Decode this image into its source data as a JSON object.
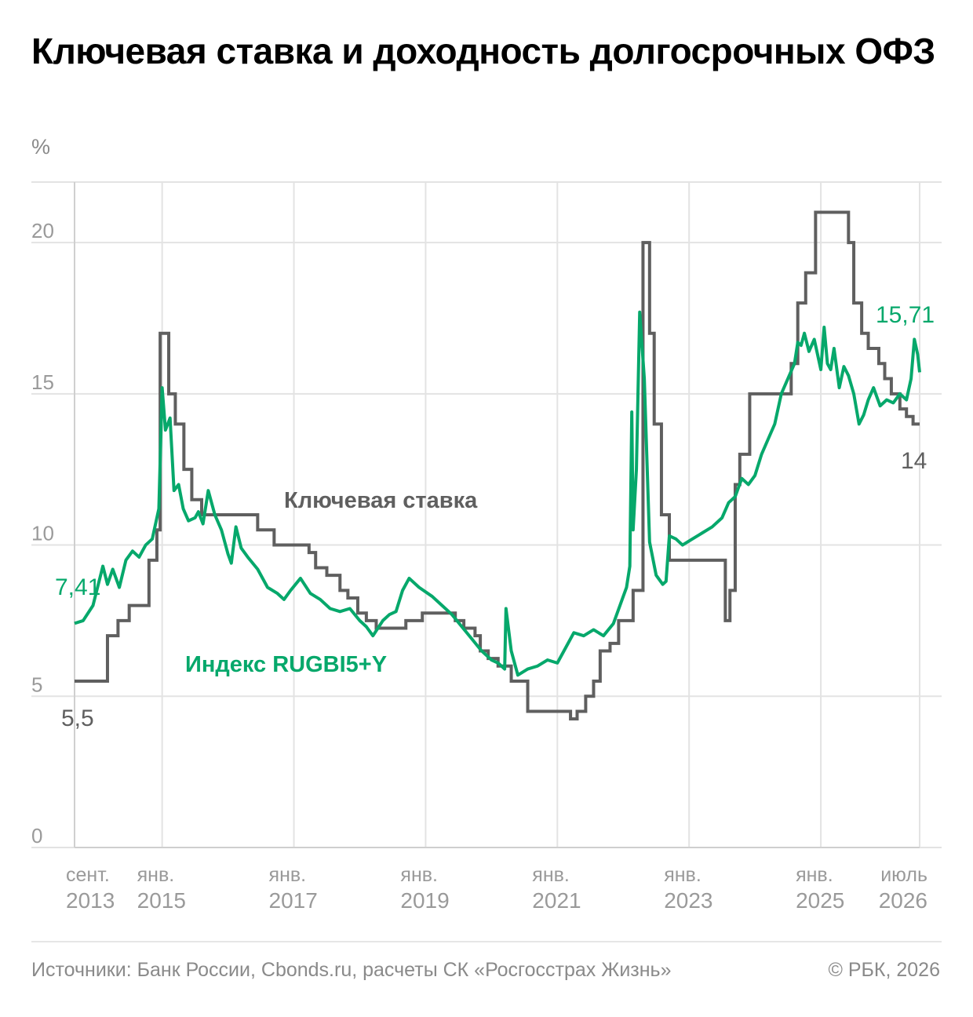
{
  "title": "Ключевая ставка и доходность долгосрочных ОФЗ",
  "unit": "%",
  "source": "Источники: Банк России, Cbonds.ru, расчеты СК «Росгосстрах Жизнь»",
  "copyright": "© РБК, 2026",
  "colors": {
    "key_rate": "#5f5f5f",
    "rugbi": "#06a86b",
    "grid": "#e3e3e3",
    "tick_text": "#9a9a9a"
  },
  "chart_data": {
    "type": "line",
    "title": "Ключевая ставка и доходность долгосрочных ОФЗ",
    "ylabel": "%",
    "ylim": [
      0,
      22
    ],
    "xlim": [
      2013.67,
      2026.5
    ],
    "grid": true,
    "y_ticks": [
      0,
      5,
      10,
      15,
      20
    ],
    "x_ticks": [
      {
        "x": 2013.67,
        "line1": "сент.",
        "line2": "2013"
      },
      {
        "x": 2015.0,
        "line1": "янв.",
        "line2": "2015"
      },
      {
        "x": 2017.0,
        "line1": "янв.",
        "line2": "2017"
      },
      {
        "x": 2019.0,
        "line1": "янв.",
        "line2": "2019"
      },
      {
        "x": 2021.0,
        "line1": "янв.",
        "line2": "2021"
      },
      {
        "x": 2023.0,
        "line1": "янв.",
        "line2": "2023"
      },
      {
        "x": 2025.0,
        "line1": "янв.",
        "line2": "2025"
      },
      {
        "x": 2026.5,
        "line1": "июль",
        "line2": "2026"
      }
    ],
    "series": [
      {
        "name": "Ключевая ставка",
        "kind": "step",
        "start_label": "5,5",
        "end_label": "14",
        "x": [
          2013.67,
          2014.17,
          2014.33,
          2014.5,
          2014.8,
          2014.92,
          2014.97,
          2015.1,
          2015.2,
          2015.33,
          2015.45,
          2015.6,
          2016.45,
          2016.7,
          2017.23,
          2017.33,
          2017.5,
          2017.7,
          2017.82,
          2017.97,
          2018.1,
          2018.25,
          2018.7,
          2018.95,
          2019.45,
          2019.58,
          2019.75,
          2019.83,
          2019.95,
          2020.1,
          2020.3,
          2020.55,
          2021.2,
          2021.3,
          2021.43,
          2021.55,
          2021.65,
          2021.8,
          2021.93,
          2022.15,
          2022.3,
          2022.4,
          2022.47,
          2022.58,
          2022.7,
          2023.55,
          2023.62,
          2023.7,
          2023.77,
          2023.92,
          2024.55,
          2024.65,
          2024.77,
          2024.92,
          2025.42,
          2025.5,
          2025.62,
          2025.72,
          2025.88,
          2025.97,
          2026.07,
          2026.2,
          2026.3,
          2026.4,
          2026.5
        ],
        "y": [
          5.5,
          7.0,
          7.5,
          8.0,
          9.5,
          10.5,
          17.0,
          15.0,
          14.0,
          12.5,
          11.5,
          11.0,
          10.5,
          10.0,
          9.75,
          9.25,
          9.0,
          8.5,
          8.25,
          7.75,
          7.5,
          7.25,
          7.5,
          7.75,
          7.5,
          7.25,
          7.0,
          6.5,
          6.25,
          6.0,
          5.5,
          4.5,
          4.25,
          4.5,
          5.0,
          5.5,
          6.5,
          6.75,
          7.5,
          8.5,
          20.0,
          17.0,
          14.0,
          11.0,
          9.5,
          7.5,
          8.5,
          12.0,
          13.0,
          15.0,
          16.0,
          18.0,
          19.0,
          21.0,
          20.0,
          18.0,
          17.0,
          16.5,
          16.0,
          15.5,
          15.0,
          14.5,
          14.25,
          14.0,
          14.0
        ]
      },
      {
        "name": "Индекс RUGBI5+Y",
        "kind": "line",
        "start_label": "7,41",
        "end_label": "15,71",
        "x": [
          2013.67,
          2013.8,
          2013.95,
          2014.1,
          2014.17,
          2014.25,
          2014.35,
          2014.45,
          2014.55,
          2014.65,
          2014.75,
          2014.85,
          2014.95,
          2015.0,
          2015.05,
          2015.12,
          2015.18,
          2015.25,
          2015.32,
          2015.4,
          2015.5,
          2015.55,
          2015.62,
          2015.7,
          2015.8,
          2015.9,
          2016.0,
          2016.05,
          2016.12,
          2016.2,
          2016.3,
          2016.45,
          2016.6,
          2016.75,
          2016.85,
          2016.95,
          2017.1,
          2017.25,
          2017.4,
          2017.55,
          2017.7,
          2017.85,
          2018.0,
          2018.1,
          2018.2,
          2018.35,
          2018.45,
          2018.55,
          2018.65,
          2018.75,
          2018.9,
          2019.1,
          2019.25,
          2019.4,
          2019.55,
          2019.7,
          2019.85,
          2020.0,
          2020.1,
          2020.2,
          2020.22,
          2020.3,
          2020.4,
          2020.55,
          2020.7,
          2020.85,
          2021.0,
          2021.15,
          2021.25,
          2021.4,
          2021.55,
          2021.7,
          2021.85,
          2021.95,
          2022.05,
          2022.1,
          2022.13,
          2022.15,
          2022.2,
          2022.25,
          2022.32,
          2022.4,
          2022.5,
          2022.6,
          2022.65,
          2022.7,
          2022.8,
          2022.9,
          2023.05,
          2023.2,
          2023.35,
          2023.5,
          2023.6,
          2023.7,
          2023.8,
          2023.9,
          2024.0,
          2024.1,
          2024.2,
          2024.3,
          2024.4,
          2024.5,
          2024.6,
          2024.65,
          2024.7,
          2024.75,
          2024.82,
          2024.9,
          2025.0,
          2025.05,
          2025.1,
          2025.15,
          2025.2,
          2025.28,
          2025.35,
          2025.42,
          2025.5,
          2025.58,
          2025.65,
          2025.72,
          2025.8,
          2025.9,
          2026.0,
          2026.1,
          2026.2,
          2026.3,
          2026.37,
          2026.42,
          2026.47,
          2026.5
        ],
        "y": [
          7.41,
          7.5,
          8.0,
          9.3,
          8.7,
          9.2,
          8.6,
          9.5,
          9.8,
          9.6,
          10.0,
          10.2,
          11.2,
          15.2,
          13.8,
          14.2,
          11.8,
          12.0,
          11.2,
          10.8,
          10.9,
          11.1,
          10.7,
          11.8,
          11.0,
          10.5,
          9.7,
          9.4,
          10.6,
          9.9,
          9.6,
          9.2,
          8.6,
          8.4,
          8.2,
          8.5,
          8.9,
          8.4,
          8.2,
          7.9,
          7.8,
          7.9,
          7.5,
          7.3,
          7.0,
          7.5,
          7.7,
          7.8,
          8.5,
          8.9,
          8.6,
          8.3,
          8.0,
          7.7,
          7.3,
          6.9,
          6.5,
          6.2,
          6.1,
          5.9,
          7.9,
          6.5,
          5.7,
          5.9,
          6.0,
          6.2,
          6.1,
          6.7,
          7.1,
          7.0,
          7.2,
          7.0,
          7.4,
          8.0,
          8.6,
          9.3,
          14.4,
          10.5,
          12.5,
          17.7,
          15.5,
          10.1,
          9.0,
          8.7,
          8.8,
          10.3,
          10.2,
          10.0,
          10.2,
          10.4,
          10.6,
          10.9,
          11.4,
          11.6,
          12.2,
          12.0,
          12.3,
          13.0,
          13.5,
          14.0,
          15.0,
          15.5,
          16.0,
          16.7,
          16.6,
          17.0,
          16.4,
          16.8,
          15.8,
          17.2,
          16.0,
          15.8,
          16.5,
          15.2,
          15.9,
          15.6,
          15.0,
          14.0,
          14.3,
          14.8,
          15.2,
          14.6,
          14.8,
          14.7,
          15.0,
          14.8,
          15.5,
          16.8,
          16.3,
          15.71
        ]
      }
    ],
    "annotations": [
      {
        "text": "Ключевая ставка",
        "series": "Ключевая ставка"
      },
      {
        "text": "Индекс RUGBI5+Y",
        "series": "Индекс RUGBI5+Y"
      }
    ]
  }
}
